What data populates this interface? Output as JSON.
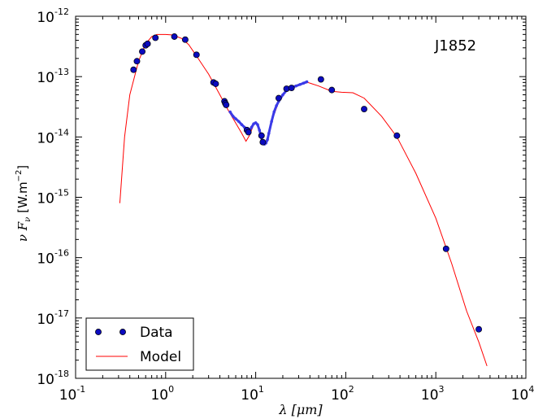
{
  "chart_data": {
    "type": "scatter",
    "annotation": "J1852",
    "xlabel": "λ [μm]",
    "ylabel": "ν F",
    "ylabel_sub": "ν",
    "ylabel_units": "[W.m",
    "ylabel_units_exp": "−2",
    "ylabel_units_close": "]",
    "x_scale": "log",
    "y_scale": "log",
    "xlim": [
      0.1,
      10000
    ],
    "ylim": [
      1e-18,
      1e-12
    ],
    "x_ticks": [
      {
        "base": "10",
        "exp": "-1",
        "value": 0.1
      },
      {
        "base": "10",
        "exp": "0",
        "value": 1
      },
      {
        "base": "10",
        "exp": "1",
        "value": 10
      },
      {
        "base": "10",
        "exp": "2",
        "value": 100
      },
      {
        "base": "10",
        "exp": "3",
        "value": 1000
      },
      {
        "base": "10",
        "exp": "4",
        "value": 10000
      }
    ],
    "y_ticks": [
      {
        "base": "10",
        "exp": "-18",
        "value": 1e-18
      },
      {
        "base": "10",
        "exp": "-17",
        "value": 1e-17
      },
      {
        "base": "10",
        "exp": "-16",
        "value": 1e-16
      },
      {
        "base": "10",
        "exp": "-15",
        "value": 1e-15
      },
      {
        "base": "10",
        "exp": "-14",
        "value": 1e-14
      },
      {
        "base": "10",
        "exp": "-13",
        "value": 1e-13
      },
      {
        "base": "10",
        "exp": "-12",
        "value": 1e-12
      }
    ],
    "legend_position": "bottom-left",
    "series": [
      {
        "name": "Data",
        "kind": "points",
        "color": "#0b0bbf",
        "points": [
          [
            0.44,
            1.3e-13
          ],
          [
            0.48,
            1.8e-13
          ],
          [
            0.55,
            2.6e-13
          ],
          [
            0.6,
            3.3e-13
          ],
          [
            0.63,
            3.5e-13
          ],
          [
            0.77,
            4.4e-13
          ],
          [
            1.25,
            4.6e-13
          ],
          [
            1.65,
            4.1e-13
          ],
          [
            2.2,
            2.3e-13
          ],
          [
            3.4,
            8e-14
          ],
          [
            3.6,
            7.6e-14
          ],
          [
            4.5,
            3.9e-14
          ],
          [
            4.6,
            3.6e-14
          ],
          [
            4.7,
            3.4e-14
          ],
          [
            8.0,
            1.3e-14
          ],
          [
            8.3,
            1.2e-14
          ],
          [
            11.6,
            1.05e-14
          ],
          [
            12.0,
            8.2e-15
          ],
          [
            18.0,
            4.4e-14
          ],
          [
            22.0,
            6.3e-14
          ],
          [
            25.0,
            6.5e-14
          ],
          [
            53.0,
            9e-14
          ],
          [
            70.0,
            6e-14
          ],
          [
            160.0,
            2.9e-14
          ],
          [
            370.0,
            1.05e-14
          ],
          [
            1300.0,
            1.4e-16
          ],
          [
            3000.0,
            6.5e-18
          ]
        ]
      },
      {
        "name": "",
        "kind": "spectrum",
        "color": "#3a3ae8",
        "points": [
          [
            5.2,
            2.6e-14
          ],
          [
            5.6,
            2.2e-14
          ],
          [
            6.0,
            2e-14
          ],
          [
            6.5,
            1.8e-14
          ],
          [
            7.0,
            1.6e-14
          ],
          [
            7.5,
            1.45e-14
          ],
          [
            8.0,
            1.3e-14
          ],
          [
            8.5,
            1.25e-14
          ],
          [
            9.0,
            1.45e-14
          ],
          [
            9.5,
            1.65e-14
          ],
          [
            10.0,
            1.72e-14
          ],
          [
            10.5,
            1.6e-14
          ],
          [
            11.0,
            1.3e-14
          ],
          [
            11.5,
            1e-14
          ],
          [
            12.0,
            8e-15
          ],
          [
            12.5,
            7.6e-15
          ],
          [
            13.0,
            7.9e-15
          ],
          [
            13.5,
            9e-15
          ],
          [
            14.0,
            1.15e-14
          ],
          [
            15.0,
            1.8e-14
          ],
          [
            16.0,
            2.6e-14
          ],
          [
            17.0,
            3.3e-14
          ],
          [
            18.0,
            3.9e-14
          ],
          [
            20.0,
            5e-14
          ],
          [
            22.0,
            5.9e-14
          ],
          [
            25.0,
            6.6e-14
          ],
          [
            28.0,
            7e-14
          ],
          [
            31.0,
            7.4e-14
          ],
          [
            34.0,
            7.8e-14
          ],
          [
            37.0,
            8.2e-14
          ]
        ]
      },
      {
        "name": "Model",
        "kind": "line",
        "color": "#ff0000",
        "points": [
          [
            0.31,
            8e-16
          ],
          [
            0.35,
            1e-14
          ],
          [
            0.4,
            5e-14
          ],
          [
            0.5,
            1.8e-13
          ],
          [
            0.6,
            3.5e-13
          ],
          [
            0.7,
            4.6e-13
          ],
          [
            0.8,
            5e-13
          ],
          [
            1.0,
            5e-13
          ],
          [
            1.2,
            4.9e-13
          ],
          [
            1.5,
            4.3e-13
          ],
          [
            1.8,
            3.4e-13
          ],
          [
            2.2,
            2.2e-13
          ],
          [
            3.0,
            1.1e-13
          ],
          [
            4.0,
            5e-14
          ],
          [
            5.0,
            2.7e-14
          ],
          [
            6.0,
            1.7e-14
          ],
          [
            7.0,
            1.15e-14
          ],
          [
            7.8,
            8.5e-15
          ],
          [
            8.5,
            1.05e-14
          ],
          [
            9.5,
            1.6e-14
          ],
          [
            10.0,
            1.7e-14
          ],
          [
            10.5,
            1.55e-14
          ],
          [
            11.5,
            9.5e-15
          ],
          [
            12.5,
            7.5e-15
          ],
          [
            13.5,
            8.5e-15
          ],
          [
            15.0,
            1.8e-14
          ],
          [
            18.0,
            3.8e-14
          ],
          [
            22.0,
            5.8e-14
          ],
          [
            30.0,
            7.2e-14
          ],
          [
            38.0,
            8e-14
          ],
          [
            50.0,
            7e-14
          ],
          [
            70.0,
            5.7e-14
          ],
          [
            90.0,
            5.5e-14
          ],
          [
            120.0,
            5.4e-14
          ],
          [
            160.0,
            4.4e-14
          ],
          [
            250.0,
            2.2e-14
          ],
          [
            370.0,
            1e-14
          ],
          [
            600.0,
            2.5e-15
          ],
          [
            1000.0,
            4.5e-16
          ],
          [
            1500.0,
            8e-17
          ],
          [
            2200.0,
            1.3e-17
          ],
          [
            3000.0,
            4e-18
          ],
          [
            3700.0,
            1.6e-18
          ]
        ]
      }
    ]
  }
}
